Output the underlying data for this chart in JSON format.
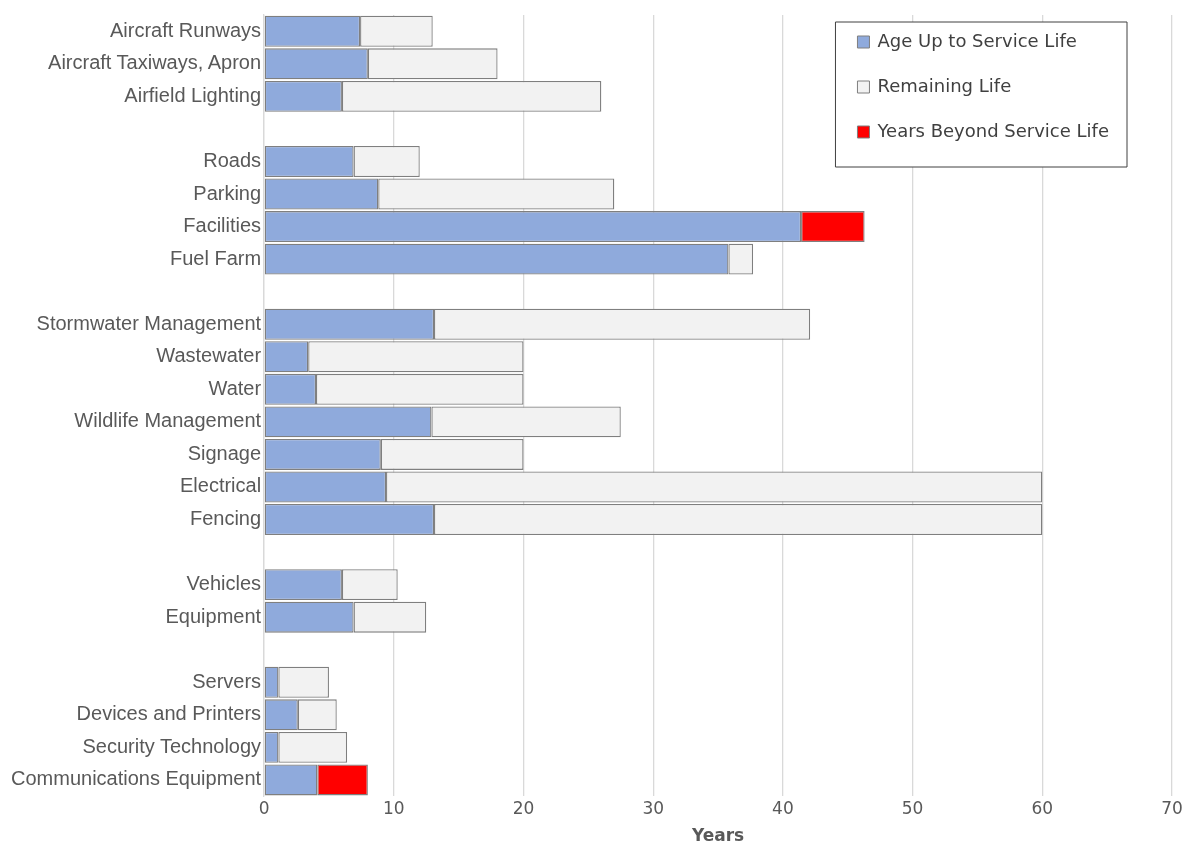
{
  "chart_data": {
    "type": "bar",
    "orientation": "horizontal",
    "stacked": true,
    "xlabel": "Years",
    "categories": [
      "Aircraft Runways",
      "Aircraft Taxiways, Apron",
      "Airfield Lighting",
      null,
      "Roads",
      "Parking",
      "Facilities",
      "Fuel Farm",
      null,
      "Stormwater Management",
      "Wastewater",
      "Water",
      "Wildlife Management",
      "Signage",
      "Electrical",
      "Fencing",
      null,
      "Vehicles",
      "Equipment",
      null,
      "Servers",
      "Devices and Printers",
      "Security Technology",
      "Communications Equipment"
    ],
    "series": [
      {
        "name": "Age Up to Service Life",
        "color": "#8faadc",
        "values": [
          7.4,
          8.0,
          6.0,
          null,
          6.9,
          8.8,
          41.4,
          35.8,
          null,
          13.1,
          3.4,
          4.0,
          12.9,
          9.0,
          9.4,
          13.1,
          null,
          6.0,
          6.9,
          null,
          1.1,
          2.6,
          1.1,
          4.1
        ]
      },
      {
        "name": "Remaining Life",
        "color": "#f2f2f2",
        "values": [
          5.6,
          10.0,
          20.0,
          null,
          5.1,
          18.2,
          null,
          1.9,
          null,
          29.0,
          16.6,
          16.0,
          14.6,
          11.0,
          50.6,
          46.9,
          null,
          4.3,
          5.6,
          null,
          3.9,
          3.0,
          5.3,
          null
        ]
      },
      {
        "name": "Years Beyond Service Life",
        "color": "#ff0000",
        "values": [
          null,
          null,
          null,
          null,
          null,
          null,
          4.9,
          null,
          null,
          null,
          null,
          null,
          null,
          null,
          null,
          null,
          null,
          null,
          null,
          null,
          null,
          null,
          null,
          3.9
        ]
      }
    ],
    "xlim": [
      0,
      70
    ],
    "xticks": [
      0,
      10,
      20,
      30,
      40,
      50,
      60,
      70
    ],
    "grid": "x",
    "legend": "top right"
  }
}
